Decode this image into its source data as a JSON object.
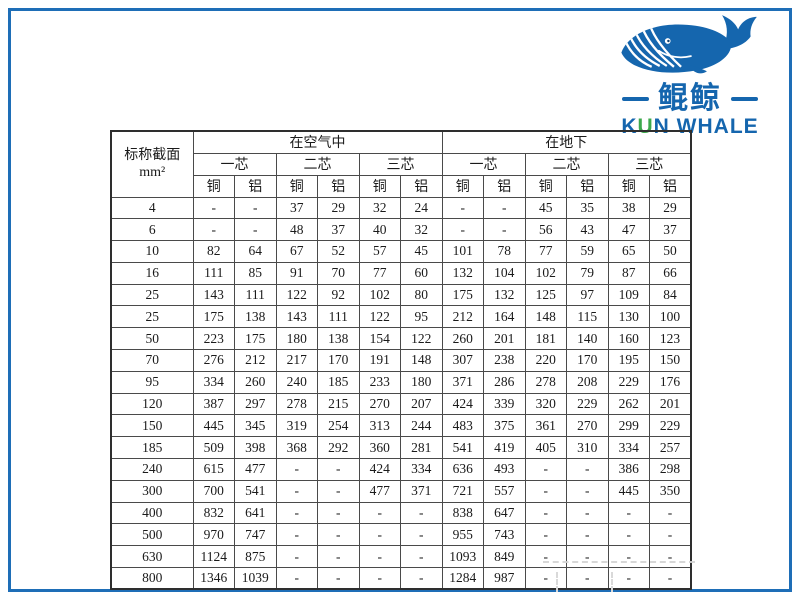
{
  "logo": {
    "cn": "鲲鲸",
    "en_k": "K",
    "en_u": "U",
    "en_rest": "N WHALE",
    "colors": {
      "blue": "#1566ae",
      "green": "#3da94c",
      "frame_blue": "#1e6eb7"
    }
  },
  "table": {
    "corner_label": "标称截面",
    "corner_unit": "mm²",
    "groups": [
      "在空气中",
      "在地下"
    ],
    "subgroups": [
      "一芯",
      "二芯",
      "三芯"
    ],
    "materials": [
      "铜",
      "铝"
    ],
    "rows": [
      {
        "size": "4",
        "values": [
          "-",
          "-",
          "37",
          "29",
          "32",
          "24",
          "-",
          "-",
          "45",
          "35",
          "38",
          "29"
        ]
      },
      {
        "size": "6",
        "values": [
          "-",
          "-",
          "48",
          "37",
          "40",
          "32",
          "-",
          "-",
          "56",
          "43",
          "47",
          "37"
        ]
      },
      {
        "size": "10",
        "values": [
          "82",
          "64",
          "67",
          "52",
          "57",
          "45",
          "101",
          "78",
          "77",
          "59",
          "65",
          "50"
        ]
      },
      {
        "size": "16",
        "values": [
          "111",
          "85",
          "91",
          "70",
          "77",
          "60",
          "132",
          "104",
          "102",
          "79",
          "87",
          "66"
        ]
      },
      {
        "size": "25",
        "values": [
          "143",
          "111",
          "122",
          "92",
          "102",
          "80",
          "175",
          "132",
          "125",
          "97",
          "109",
          "84"
        ]
      },
      {
        "size": "25",
        "values": [
          "175",
          "138",
          "143",
          "111",
          "122",
          "95",
          "212",
          "164",
          "148",
          "115",
          "130",
          "100"
        ]
      },
      {
        "size": "50",
        "values": [
          "223",
          "175",
          "180",
          "138",
          "154",
          "122",
          "260",
          "201",
          "181",
          "140",
          "160",
          "123"
        ]
      },
      {
        "size": "70",
        "values": [
          "276",
          "212",
          "217",
          "170",
          "191",
          "148",
          "307",
          "238",
          "220",
          "170",
          "195",
          "150"
        ]
      },
      {
        "size": "95",
        "values": [
          "334",
          "260",
          "240",
          "185",
          "233",
          "180",
          "371",
          "286",
          "278",
          "208",
          "229",
          "176"
        ]
      },
      {
        "size": "120",
        "values": [
          "387",
          "297",
          "278",
          "215",
          "270",
          "207",
          "424",
          "339",
          "320",
          "229",
          "262",
          "201"
        ]
      },
      {
        "size": "150",
        "values": [
          "445",
          "345",
          "319",
          "254",
          "313",
          "244",
          "483",
          "375",
          "361",
          "270",
          "299",
          "229"
        ]
      },
      {
        "size": "185",
        "values": [
          "509",
          "398",
          "368",
          "292",
          "360",
          "281",
          "541",
          "419",
          "405",
          "310",
          "334",
          "257"
        ]
      },
      {
        "size": "240",
        "values": [
          "615",
          "477",
          "-",
          "-",
          "424",
          "334",
          "636",
          "493",
          "-",
          "-",
          "386",
          "298"
        ]
      },
      {
        "size": "300",
        "values": [
          "700",
          "541",
          "-",
          "-",
          "477",
          "371",
          "721",
          "557",
          "-",
          "-",
          "445",
          "350"
        ]
      },
      {
        "size": "400",
        "values": [
          "832",
          "641",
          "-",
          "-",
          "-",
          "-",
          "838",
          "647",
          "-",
          "-",
          "-",
          "-"
        ]
      },
      {
        "size": "500",
        "values": [
          "970",
          "747",
          "-",
          "-",
          "-",
          "-",
          "955",
          "743",
          "-",
          "-",
          "-",
          "-"
        ]
      },
      {
        "size": "630",
        "values": [
          "1124",
          "875",
          "-",
          "-",
          "-",
          "-",
          "1093",
          "849",
          "-",
          "-",
          "-",
          "-"
        ]
      },
      {
        "size": "800",
        "values": [
          "1346",
          "1039",
          "-",
          "-",
          "-",
          "-",
          "1284",
          "987",
          "-",
          "-",
          "-",
          "-"
        ]
      }
    ]
  }
}
